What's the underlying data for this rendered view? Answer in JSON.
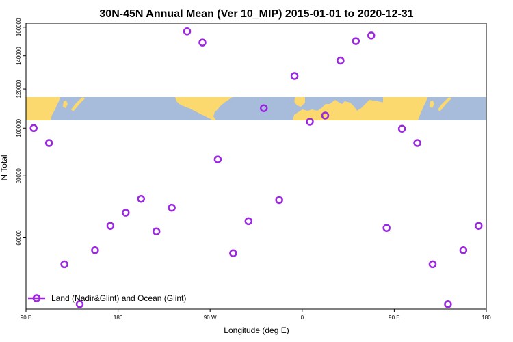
{
  "chart_data": {
    "type": "scatter",
    "title": "30N-45N Annual Mean (Ver 10_MIP)   2015-01-01 to 2020-12-31",
    "xlabel": "Longitude (deg E)",
    "ylabel": "N Total",
    "x_ticks": [
      {
        "value": 90,
        "label": "90 E"
      },
      {
        "value": 180,
        "label": "180"
      },
      {
        "value": 270,
        "label": "90 W"
      },
      {
        "value": 360,
        "label": "0"
      },
      {
        "value": 450,
        "label": "90 E"
      }
    ],
    "y_ticks": [
      60000,
      80000,
      100000,
      120000,
      140000,
      160000
    ],
    "y_scale": "log",
    "xlim": [
      90,
      540
    ],
    "ylim": [
      43000,
      163000
    ],
    "legend": {
      "label": "Land (Nadir&Glint) and Ocean (Glint)",
      "position": "bottom-left"
    },
    "series": [
      {
        "name": "Land (Nadir&Glint) and Ocean (Glint)",
        "color": "#9b27e0",
        "x": [
          97.5,
          112.5,
          127.5,
          142.5,
          157.5,
          172.5,
          187.5,
          202.5,
          217.5,
          232.5,
          247.5,
          262.5,
          277.5,
          292.5,
          307.5,
          322.5,
          337.5,
          352.5,
          367.5,
          382.5,
          397.5,
          412.5,
          427.5,
          442.5,
          457.5,
          472.5,
          487.5,
          502.5,
          517.5,
          532.5
        ],
        "y": [
          100000,
          93300,
          53000,
          44000,
          56600,
          63400,
          67400,
          71900,
          61800,
          69000,
          157000,
          149000,
          86400,
          55800,
          64800,
          109700,
          71500,
          127500,
          103000,
          106000,
          137000,
          150000,
          154000,
          62800,
          99700,
          93300,
          53000,
          44000,
          56600,
          63400
        ]
      }
    ],
    "map_band": {
      "lat_range": "30N-45N",
      "ocean_color": "#a7bbdb",
      "land_color": "#fbd96e"
    }
  }
}
